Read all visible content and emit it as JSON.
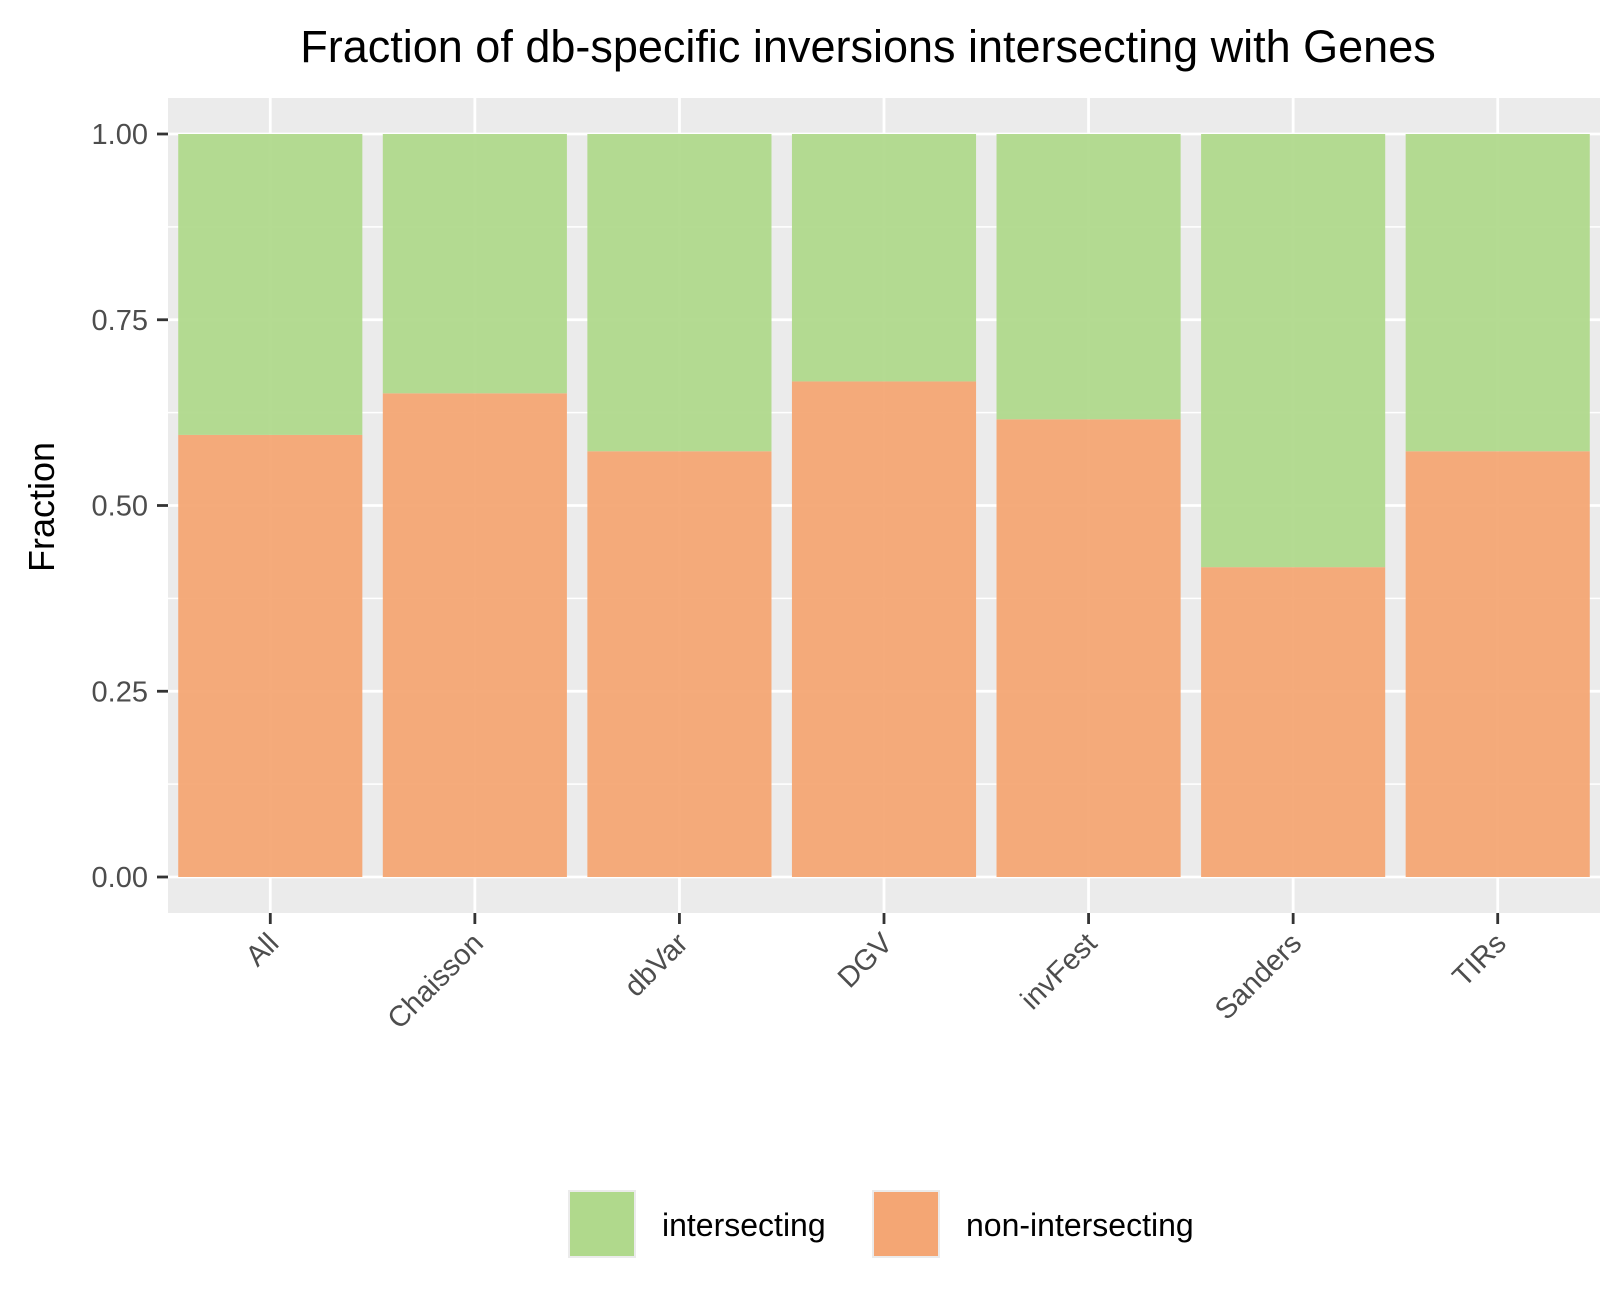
{
  "chart_data": {
    "type": "bar",
    "stacked": true,
    "title": "Fraction of db-specific inversions intersecting with Genes",
    "xlabel": "",
    "ylabel": "Fraction",
    "ylim": [
      0,
      1.05
    ],
    "yticks": [
      0,
      0.25,
      0.5,
      0.75,
      1.0
    ],
    "ytick_labels": [
      "0.00",
      "0.25",
      "0.50",
      "0.75",
      "1.00"
    ],
    "categories": [
      "All",
      "Chaisson",
      "dbVar",
      "DGV",
      "invFest",
      "Sanders",
      "TIRs"
    ],
    "series": [
      {
        "name": "non-intersecting",
        "color": "#f4a674",
        "values": [
          0.595,
          0.651,
          0.573,
          0.667,
          0.616,
          0.417,
          0.573
        ]
      },
      {
        "name": "intersecting",
        "color": "#b0d98c",
        "values": [
          0.405,
          0.349,
          0.427,
          0.333,
          0.384,
          0.583,
          0.427
        ]
      }
    ],
    "legend": {
      "position": "bottom",
      "items": [
        {
          "label": "intersecting",
          "color": "#b0d98c"
        },
        {
          "label": "non-intersecting",
          "color": "#f4a674"
        }
      ]
    },
    "grid": true,
    "panel_background": "#ebebeb",
    "gridline_color": "#ffffff"
  }
}
